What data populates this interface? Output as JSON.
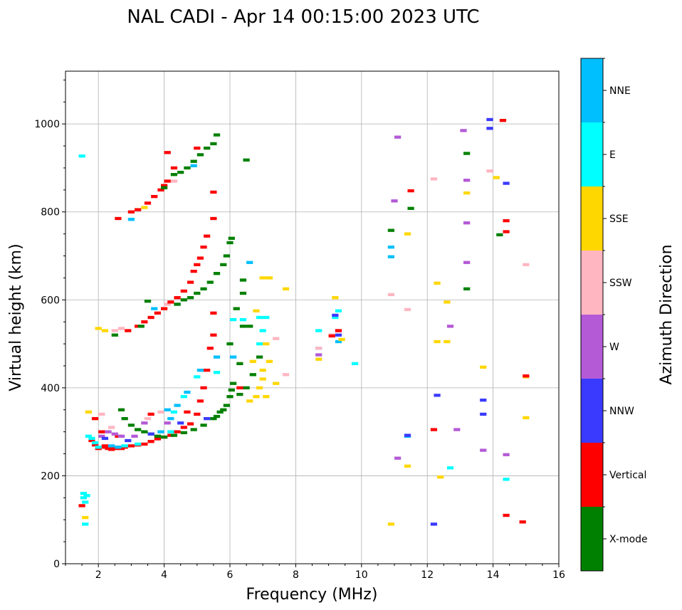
{
  "chart_data": {
    "type": "scatter",
    "title": "NAL CADI - Apr 14 00:15:00 2023 UTC",
    "xlabel": "Frequency (MHz)",
    "ylabel": "Virtual height (km)",
    "xlim": [
      1,
      16
    ],
    "ylim": [
      0,
      1120
    ],
    "xticks": [
      2,
      4,
      6,
      8,
      10,
      12,
      14,
      16
    ],
    "yticks": [
      0,
      200,
      400,
      600,
      800,
      1000
    ],
    "grid": true,
    "colorbar": {
      "label": "Azimuth Direction",
      "categories": [
        "X-mode",
        "Vertical",
        "NNW",
        "W",
        "SSW",
        "SSE",
        "E",
        "NNE"
      ],
      "colors": [
        "#008000",
        "#ff0000",
        "#3a3aff",
        "#b45ad6",
        "#ffb6c1",
        "#ffd700",
        "#00ffff",
        "#00bfff"
      ]
    },
    "points": [
      [
        1.8,
        280,
        1
      ],
      [
        1.9,
        270,
        1
      ],
      [
        2,
        262,
        1
      ],
      [
        2.1,
        265,
        1
      ],
      [
        2.2,
        268,
        1
      ],
      [
        2.3,
        262,
        1
      ],
      [
        2.4,
        260,
        1
      ],
      [
        2.5,
        262,
        1
      ],
      [
        2.6,
        265,
        1
      ],
      [
        2.7,
        262,
        1
      ],
      [
        2.8,
        265,
        1
      ],
      [
        3,
        268,
        1
      ],
      [
        3.2,
        270,
        1
      ],
      [
        3.4,
        272,
        1
      ],
      [
        3.6,
        278,
        1
      ],
      [
        3.8,
        284,
        1
      ],
      [
        4,
        288,
        1
      ],
      [
        4.2,
        292,
        1
      ],
      [
        4.4,
        300,
        1
      ],
      [
        4.6,
        310,
        1
      ],
      [
        4.8,
        318,
        1
      ],
      [
        5,
        340,
        1
      ],
      [
        5.1,
        370,
        1
      ],
      [
        5.2,
        400,
        1
      ],
      [
        5.3,
        440,
        1
      ],
      [
        5.4,
        490,
        1
      ],
      [
        5.5,
        520,
        1
      ],
      [
        5.5,
        570,
        1
      ],
      [
        1.9,
        330,
        1
      ],
      [
        2.1,
        300,
        1
      ],
      [
        3.6,
        340,
        1
      ],
      [
        4.7,
        345,
        1
      ],
      [
        2.6,
        290,
        1
      ],
      [
        1.5,
        132,
        1
      ],
      [
        2.8,
        330,
        0
      ],
      [
        3,
        315,
        0
      ],
      [
        3.2,
        305,
        0
      ],
      [
        3.4,
        300,
        0
      ],
      [
        3.6,
        295,
        0
      ],
      [
        3.8,
        290,
        0
      ],
      [
        4,
        288,
        0
      ],
      [
        4.3,
        292,
        0
      ],
      [
        4.6,
        298,
        0
      ],
      [
        4.9,
        305,
        0
      ],
      [
        5.2,
        315,
        0
      ],
      [
        5.5,
        330,
        0
      ],
      [
        5.7,
        345,
        0
      ],
      [
        5.9,
        360,
        0
      ],
      [
        6,
        380,
        0
      ],
      [
        6.05,
        395,
        0
      ],
      [
        6.1,
        410,
        0
      ],
      [
        5.6,
        335,
        0
      ],
      [
        5.8,
        350,
        0
      ],
      [
        2.7,
        350,
        0
      ],
      [
        6.3,
        385,
        0
      ],
      [
        6.5,
        400,
        0
      ],
      [
        6.7,
        430,
        0
      ],
      [
        6.9,
        470,
        0
      ],
      [
        6.3,
        455,
        0
      ],
      [
        6.4,
        540,
        0
      ],
      [
        6.6,
        540,
        0
      ],
      [
        6.4,
        615,
        0
      ],
      [
        6.4,
        645,
        0
      ],
      [
        6.0,
        500,
        0
      ],
      [
        6.2,
        580,
        0
      ],
      [
        1.7,
        290,
        6
      ],
      [
        1.8,
        285,
        6
      ],
      [
        1.9,
        275,
        6
      ],
      [
        2,
        265,
        6
      ],
      [
        2.8,
        268,
        6
      ],
      [
        3.2,
        272,
        6
      ],
      [
        4.2,
        300,
        6
      ],
      [
        4.3,
        345,
        6
      ],
      [
        4.6,
        380,
        6
      ],
      [
        5,
        425,
        6
      ],
      [
        5.6,
        435,
        6
      ],
      [
        6.1,
        555,
        6
      ],
      [
        6.4,
        555,
        6
      ],
      [
        6.9,
        500,
        6
      ],
      [
        7,
        530,
        6
      ],
      [
        7.1,
        560,
        6
      ],
      [
        6.9,
        560,
        6
      ],
      [
        1.55,
        150,
        6
      ],
      [
        1.6,
        140,
        6
      ],
      [
        1.65,
        155,
        6
      ],
      [
        1.55,
        160,
        6
      ],
      [
        1.6,
        90,
        6
      ],
      [
        1.5,
        927,
        6
      ],
      [
        8.7,
        530,
        6
      ],
      [
        9.2,
        560,
        6
      ],
      [
        9.3,
        575,
        6
      ],
      [
        9.8,
        455,
        6
      ],
      [
        12.7,
        218,
        6
      ],
      [
        14.4,
        192,
        6
      ],
      [
        2.4,
        268,
        7
      ],
      [
        2.6,
        265,
        7
      ],
      [
        3.9,
        300,
        7
      ],
      [
        4.1,
        350,
        7
      ],
      [
        4.4,
        360,
        7
      ],
      [
        4.7,
        390,
        7
      ],
      [
        5.1,
        440,
        7
      ],
      [
        3.7,
        580,
        7
      ],
      [
        4.4,
        590,
        7
      ],
      [
        5.6,
        470,
        7
      ],
      [
        6.6,
        685,
        7
      ],
      [
        8.7,
        490,
        7
      ],
      [
        9.3,
        505,
        7
      ],
      [
        10.9,
        720,
        7
      ],
      [
        10.9,
        698,
        7
      ],
      [
        11.4,
        290,
        7
      ],
      [
        3.0,
        783,
        7
      ],
      [
        4.9,
        905,
        7
      ],
      [
        6.1,
        470,
        7
      ],
      [
        4.2,
        330,
        7
      ],
      [
        2.1,
        290,
        3
      ],
      [
        2.3,
        300,
        3
      ],
      [
        2.5,
        295,
        3
      ],
      [
        2.7,
        290,
        3
      ],
      [
        3.1,
        290,
        3
      ],
      [
        3.4,
        320,
        3
      ],
      [
        4.1,
        320,
        3
      ],
      [
        8.7,
        475,
        3
      ],
      [
        9.3,
        530,
        3
      ],
      [
        11.1,
        240,
        3
      ],
      [
        12.7,
        540,
        3
      ],
      [
        12.9,
        305,
        3
      ],
      [
        13.1,
        985,
        3
      ],
      [
        13.2,
        775,
        3
      ],
      [
        13.2,
        872,
        3
      ],
      [
        13.2,
        685,
        3
      ],
      [
        13.7,
        258,
        3
      ],
      [
        14.4,
        248,
        3
      ],
      [
        11.1,
        970,
        3
      ],
      [
        11.0,
        825,
        3
      ],
      [
        2.2,
        285,
        2
      ],
      [
        2.9,
        280,
        2
      ],
      [
        3.6,
        295,
        2
      ],
      [
        4.5,
        320,
        2
      ],
      [
        5.3,
        330,
        2
      ],
      [
        9.3,
        520,
        2
      ],
      [
        12.3,
        383,
        2
      ],
      [
        12.2,
        90,
        2
      ],
      [
        13.7,
        372,
        2
      ],
      [
        13.7,
        340,
        2
      ],
      [
        13.9,
        1010,
        2
      ],
      [
        13.9,
        990,
        2
      ],
      [
        14.4,
        865,
        2
      ],
      [
        11.4,
        292,
        2
      ],
      [
        9.2,
        565,
        2
      ],
      [
        2.1,
        340,
        4
      ],
      [
        2.4,
        310,
        4
      ],
      [
        2.5,
        530,
        4
      ],
      [
        2.7,
        535,
        4
      ],
      [
        3.5,
        330,
        4
      ],
      [
        3.9,
        345,
        4
      ],
      [
        4.1,
        590,
        4
      ],
      [
        4.3,
        870,
        4
      ],
      [
        8.7,
        490,
        4
      ],
      [
        9.1,
        520,
        4
      ],
      [
        10.9,
        612,
        4
      ],
      [
        12.2,
        875,
        4
      ],
      [
        15.0,
        680,
        4
      ],
      [
        11.4,
        578,
        4
      ],
      [
        7.4,
        512,
        4
      ],
      [
        7.7,
        430,
        4
      ],
      [
        13.9,
        893,
        4
      ],
      [
        2,
        535,
        5
      ],
      [
        2.2,
        530,
        5
      ],
      [
        1.7,
        345,
        5
      ],
      [
        1.6,
        105,
        5
      ],
      [
        3.4,
        810,
        5
      ],
      [
        6.8,
        380,
        5
      ],
      [
        6.9,
        400,
        5
      ],
      [
        7,
        420,
        5
      ],
      [
        7.1,
        380,
        5
      ],
      [
        7.0,
        440,
        5
      ],
      [
        7.2,
        460,
        5
      ],
      [
        6.7,
        460,
        5
      ],
      [
        6.8,
        575,
        5
      ],
      [
        7.0,
        650,
        5
      ],
      [
        7.2,
        650,
        5
      ],
      [
        7.4,
        410,
        5
      ],
      [
        7.7,
        625,
        5
      ],
      [
        8.7,
        465,
        5
      ],
      [
        9.2,
        605,
        5
      ],
      [
        9.4,
        510,
        5
      ],
      [
        10.9,
        90,
        5
      ],
      [
        11.4,
        750,
        5
      ],
      [
        11.4,
        222,
        5
      ],
      [
        12.3,
        638,
        5
      ],
      [
        12.3,
        505,
        5
      ],
      [
        12.6,
        505,
        5
      ],
      [
        12.6,
        595,
        5
      ],
      [
        12.4,
        197,
        5
      ],
      [
        13.2,
        843,
        5
      ],
      [
        13.7,
        447,
        5
      ],
      [
        14.1,
        878,
        5
      ],
      [
        15.0,
        425,
        5
      ],
      [
        15.0,
        332,
        5
      ],
      [
        6.6,
        370,
        5
      ],
      [
        7.1,
        500,
        5
      ],
      [
        14.3,
        1008,
        1
      ],
      [
        14.4,
        780,
        1
      ],
      [
        14.4,
        755,
        1
      ],
      [
        14.4,
        110,
        1
      ],
      [
        14.9,
        95,
        1
      ],
      [
        15,
        427,
        1
      ],
      [
        12.2,
        305,
        1
      ],
      [
        11.5,
        848,
        1
      ],
      [
        9.1,
        518,
        1
      ],
      [
        9.3,
        530,
        1
      ],
      [
        5.5,
        845,
        1
      ],
      [
        5.5,
        785,
        1
      ],
      [
        4.1,
        935,
        1
      ],
      [
        6.3,
        400,
        1
      ],
      [
        2.6,
        785,
        1
      ],
      [
        2.9,
        530,
        1
      ],
      [
        3.2,
        540,
        1
      ],
      [
        3.4,
        550,
        1
      ],
      [
        3.6,
        560,
        1
      ],
      [
        3.8,
        570,
        1
      ],
      [
        4,
        580,
        1
      ],
      [
        4.2,
        595,
        1
      ],
      [
        4.4,
        605,
        1
      ],
      [
        4.6,
        620,
        1
      ],
      [
        4.8,
        640,
        1
      ],
      [
        4.9,
        665,
        1
      ],
      [
        5,
        680,
        1
      ],
      [
        5.1,
        695,
        1
      ],
      [
        5.2,
        720,
        1
      ],
      [
        5.3,
        745,
        1
      ],
      [
        2.5,
        520,
        0
      ],
      [
        3.3,
        540,
        0
      ],
      [
        4.4,
        590,
        0
      ],
      [
        4.6,
        600,
        0
      ],
      [
        4.8,
        605,
        0
      ],
      [
        5,
        615,
        0
      ],
      [
        5.2,
        625,
        0
      ],
      [
        5.4,
        640,
        0
      ],
      [
        5.6,
        660,
        0
      ],
      [
        5.8,
        680,
        0
      ],
      [
        5.9,
        700,
        0
      ],
      [
        6.0,
        730,
        0
      ],
      [
        6.05,
        740,
        0
      ],
      [
        3.5,
        597,
        0
      ],
      [
        6.5,
        918,
        0
      ],
      [
        3.0,
        800,
        1
      ],
      [
        3.2,
        805,
        1
      ],
      [
        3.5,
        820,
        1
      ],
      [
        3.7,
        835,
        1
      ],
      [
        3.9,
        850,
        1
      ],
      [
        4,
        860,
        1
      ],
      [
        4.1,
        870,
        1
      ],
      [
        4.3,
        900,
        1
      ],
      [
        5.0,
        945,
        1
      ],
      [
        4.3,
        885,
        0
      ],
      [
        4.5,
        890,
        0
      ],
      [
        4.7,
        900,
        0
      ],
      [
        4.9,
        915,
        0
      ],
      [
        5.1,
        930,
        0
      ],
      [
        5.3,
        945,
        0
      ],
      [
        5.5,
        955,
        0
      ],
      [
        5.6,
        975,
        0
      ],
      [
        4.0,
        855,
        0
      ],
      [
        11.5,
        808,
        0
      ],
      [
        13.2,
        625,
        0
      ],
      [
        14.2,
        748,
        0
      ],
      [
        10.9,
        758,
        0
      ],
      [
        13.2,
        933,
        0
      ]
    ]
  }
}
